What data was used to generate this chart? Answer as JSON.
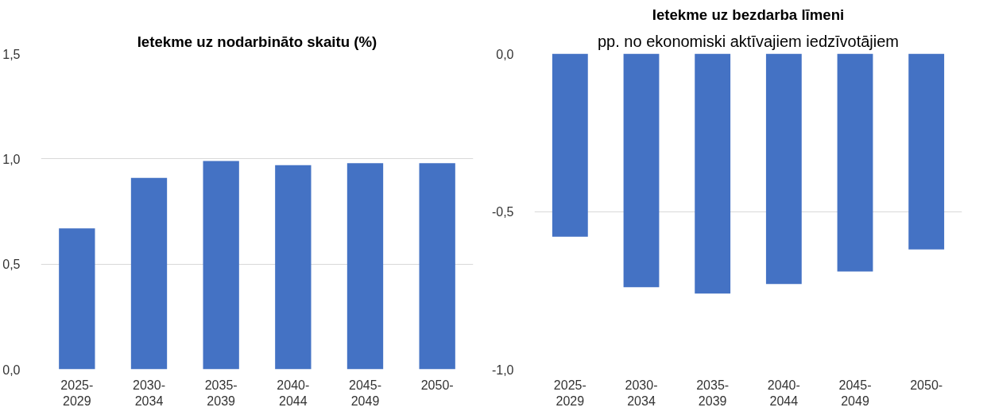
{
  "chart_data": [
    {
      "type": "bar",
      "title": "Ietekme uz nodarbināto skaitu (%)",
      "categories": [
        "2025-\n2029",
        "2030-\n2034",
        "2035-\n2039",
        "2040-\n2044",
        "2045-\n2049",
        "2050-"
      ],
      "values": [
        0.67,
        0.91,
        0.99,
        0.97,
        0.98,
        0.98
      ],
      "color": "#4472c4",
      "ylim": [
        0,
        1.5
      ],
      "yticks": [
        {
          "value": 0,
          "label": "0,0"
        },
        {
          "value": 0.5,
          "label": "0,5"
        },
        {
          "value": 1.0,
          "label": "1,0"
        },
        {
          "value": 1.5,
          "label": "1,5"
        }
      ],
      "grid": "y"
    },
    {
      "type": "bar",
      "title": "Ietekme uz bezdarba līmeni",
      "subtitle": "pp. no ekonomiski aktīvajiem iedzīvotājiem",
      "categories": [
        "2025-\n2029",
        "2030-\n2034",
        "2035-\n2039",
        "2040-\n2044",
        "2045-\n2049",
        "2050-"
      ],
      "values": [
        -0.58,
        -0.74,
        -0.76,
        -0.73,
        -0.69,
        -0.62
      ],
      "color": "#4472c4",
      "ylim": [
        -1,
        0
      ],
      "yticks": [
        {
          "value": -1,
          "label": "-1,0"
        },
        {
          "value": -0.5,
          "label": "-0,5"
        },
        {
          "value": 0,
          "label": "0,0"
        }
      ],
      "grid": "y"
    }
  ]
}
